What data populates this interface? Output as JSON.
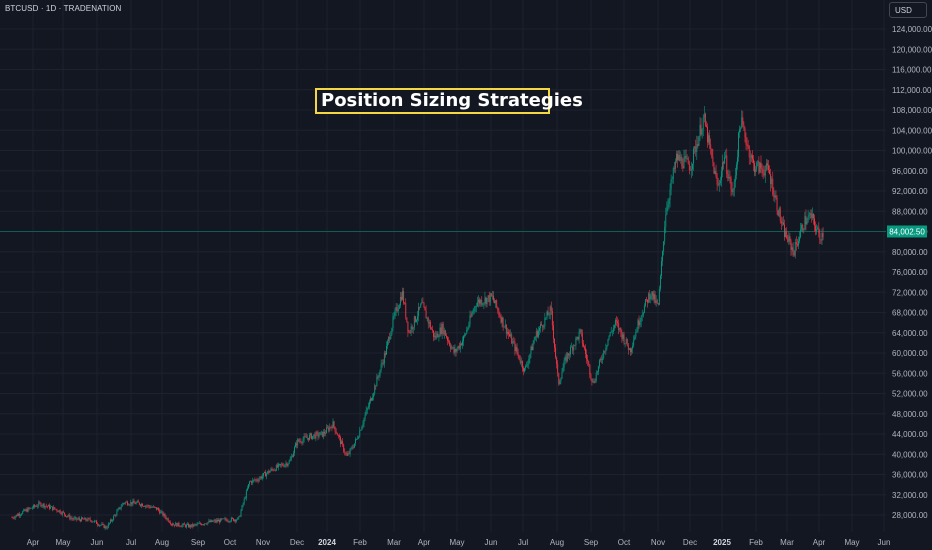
{
  "header": {
    "symbol_label": "BTCUSD · 1D · TRADENATION"
  },
  "currency_button": {
    "label": "USD"
  },
  "annotation": {
    "text": "Position Sizing Strategies"
  },
  "price_tag": {
    "label": "84,002.50",
    "value": 84002.5,
    "color": "#089981"
  },
  "colors": {
    "up": "#089981",
    "down": "#f23645",
    "background": "#131722",
    "grid": "#1e222d",
    "annotation_border": "#f5d742"
  },
  "chart_data": {
    "type": "line",
    "title": "",
    "symbol": "BTCUSD",
    "timeframe": "1D",
    "xlabel": "",
    "ylabel": "",
    "ylim": [
      24000,
      126000
    ],
    "y_ticks": [
      28000,
      32000,
      36000,
      40000,
      44000,
      48000,
      52000,
      56000,
      60000,
      64000,
      68000,
      72000,
      76000,
      80000,
      84000,
      88000,
      92000,
      96000,
      100000,
      104000,
      108000,
      112000,
      116000,
      120000,
      124000
    ],
    "y_tick_labels": [
      "28,000.00",
      "32,000.00",
      "36,000.00",
      "40,000.00",
      "44,000.00",
      "48,000.00",
      "52,000.00",
      "56,000.00",
      "60,000.00",
      "64,000.00",
      "68,000.00",
      "72,000.00",
      "76,000.00",
      "80,000.00",
      "84,000.00",
      "88,000.00",
      "92,000.00",
      "96,000.00",
      "100,000.00",
      "104,000.00",
      "108,000.00",
      "112,000.00",
      "116,000.00",
      "120,000.00",
      "124,000.00"
    ],
    "x_ticks": [
      "Apr",
      "May",
      "Jun",
      "Jul",
      "Aug",
      "Sep",
      "Oct",
      "Nov",
      "Dec",
      "2024",
      "Feb",
      "Mar",
      "Apr",
      "May",
      "Jun",
      "Jul",
      "Aug",
      "Sep",
      "Oct",
      "Nov",
      "Dec",
      "2025",
      "Feb",
      "Mar",
      "Apr",
      "May",
      "Jun"
    ],
    "x_tick_index": [
      0,
      1,
      2,
      3,
      4,
      5,
      6,
      7,
      8,
      9,
      10,
      11,
      12,
      13,
      14,
      15,
      15.9,
      17,
      18,
      19,
      20,
      21,
      22,
      23,
      24,
      25,
      26
    ],
    "year_ticks": [
      "2024",
      "2025"
    ],
    "grid": true,
    "series": [
      {
        "x": [
          "2023-03-20",
          "2023-04-01",
          "2023-04-15",
          "2023-05-01",
          "2023-05-15",
          "2023-06-01",
          "2023-06-15",
          "2023-07-01",
          "2023-07-15",
          "2023-08-01",
          "2023-08-15",
          "2023-09-01",
          "2023-09-15",
          "2023-10-01",
          "2023-10-15",
          "2023-10-25",
          "2023-11-01",
          "2023-11-15",
          "2023-12-01",
          "2023-12-08",
          "2023-12-20",
          "2024-01-01",
          "2024-01-10",
          "2024-01-23",
          "2024-02-01",
          "2024-02-15",
          "2024-02-28",
          "2024-03-05",
          "2024-03-14",
          "2024-03-20",
          "2024-04-01",
          "2024-04-13",
          "2024-04-20",
          "2024-05-01",
          "2024-05-10",
          "2024-05-21",
          "2024-06-05",
          "2024-06-15",
          "2024-06-25",
          "2024-07-05",
          "2024-07-15",
          "2024-07-29",
          "2024-08-05",
          "2024-08-12",
          "2024-08-25",
          "2024-09-06",
          "2024-09-20",
          "2024-09-27",
          "2024-10-10",
          "2024-10-20",
          "2024-10-29",
          "2024-11-05",
          "2024-11-12",
          "2024-11-22",
          "2024-12-05",
          "2024-12-17",
          "2024-12-30",
          "2025-01-05",
          "2025-01-13",
          "2025-01-20",
          "2025-02-01",
          "2025-02-15",
          "2025-02-28",
          "2025-03-10",
          "2025-03-20",
          "2025-03-26",
          "2025-04-03",
          "2025-04-07"
        ],
        "values": [
          27500,
          28800,
          30200,
          29000,
          27200,
          27000,
          25500,
          30500,
          30300,
          29200,
          26200,
          25800,
          26500,
          27000,
          27200,
          34500,
          35000,
          37000,
          38500,
          42500,
          43500,
          44000,
          46000,
          39500,
          43000,
          51500,
          60500,
          66000,
          72000,
          64000,
          69500,
          63000,
          65000,
          60000,
          63000,
          70000,
          71000,
          66000,
          61500,
          56500,
          63500,
          68500,
          54000,
          59000,
          64000,
          54000,
          63000,
          66000,
          60500,
          67500,
          72000,
          69000,
          88000,
          98500,
          97000,
          106500,
          92500,
          99000,
          91000,
          106000,
          97000,
          96000,
          84500,
          80000,
          86000,
          87000,
          83000,
          84002.5
        ]
      }
    ]
  }
}
